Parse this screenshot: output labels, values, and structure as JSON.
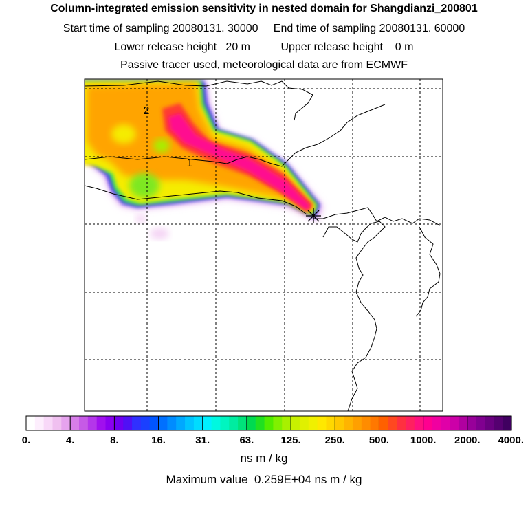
{
  "header": {
    "title": "Column-integrated emission sensitivity in nested domain for Shangdianzi_200801",
    "start_label": "Start time of sampling",
    "start_value": "20080131. 30000",
    "end_label": "End time of sampling",
    "end_value": "20080131. 60000",
    "lower_label": "Lower release height",
    "lower_value": "20 m",
    "upper_label": "Upper release height",
    "upper_value": "0 m",
    "note": "Passive tracer used, meteorological data are from ECMWF"
  },
  "chart_data": {
    "type": "heatmap",
    "title": "Column-integrated emission sensitivity in nested domain for Shangdianzi_200801",
    "units": "ns m / kg",
    "max_value_text": "Maximum value  0.259E+04 ns m / kg",
    "colorbar_ticks": [
      "0.",
      "4.",
      "8.",
      "16.",
      "31.",
      "63.",
      "125.",
      "250.",
      "500.",
      "1000.",
      "2000.",
      "4000."
    ],
    "colorbar_colors": [
      [
        "#ffffff",
        "#fdeefd",
        "#f8d8f8",
        "#f0c0f0",
        "#e6a3ee"
      ],
      [
        "#d77ee9",
        "#c65ae6",
        "#b436ea",
        "#a010ee",
        "#8a00f0"
      ],
      [
        "#7000f0",
        "#5010f5",
        "#3030ff",
        "#1a40ff",
        "#0055ff"
      ],
      [
        "#0070ff",
        "#008cff",
        "#00a8ff",
        "#00c4ff",
        "#00dcff"
      ],
      [
        "#00f0ff",
        "#00f8e0",
        "#00f5c0",
        "#00eca0",
        "#00e37a"
      ],
      [
        "#00da50",
        "#20e020",
        "#50ec00",
        "#80f000",
        "#a8f000"
      ],
      [
        "#c8f000",
        "#e0f000",
        "#f0f000",
        "#ffe800",
        "#ffd800"
      ],
      [
        "#ffc800",
        "#ffb400",
        "#ffa000",
        "#ff8c00",
        "#ff7800"
      ],
      [
        "#ff6000",
        "#ff4820",
        "#ff3040",
        "#ff2060",
        "#ff1080"
      ],
      [
        "#ff0090",
        "#f000a0",
        "#e000a8",
        "#cc00a8",
        "#b000a0"
      ],
      [
        "#98009a",
        "#800090",
        "#6a0080",
        "#550070",
        "#400060"
      ]
    ],
    "release_point_label": "*",
    "cluster_labels": [
      "1",
      "2"
    ],
    "plume": {
      "domain_note": "relative map coordinates (0-1)",
      "levels": [
        "8.",
        "16.",
        "63.",
        "250.",
        "500.",
        "1000.",
        "2000."
      ]
    }
  }
}
